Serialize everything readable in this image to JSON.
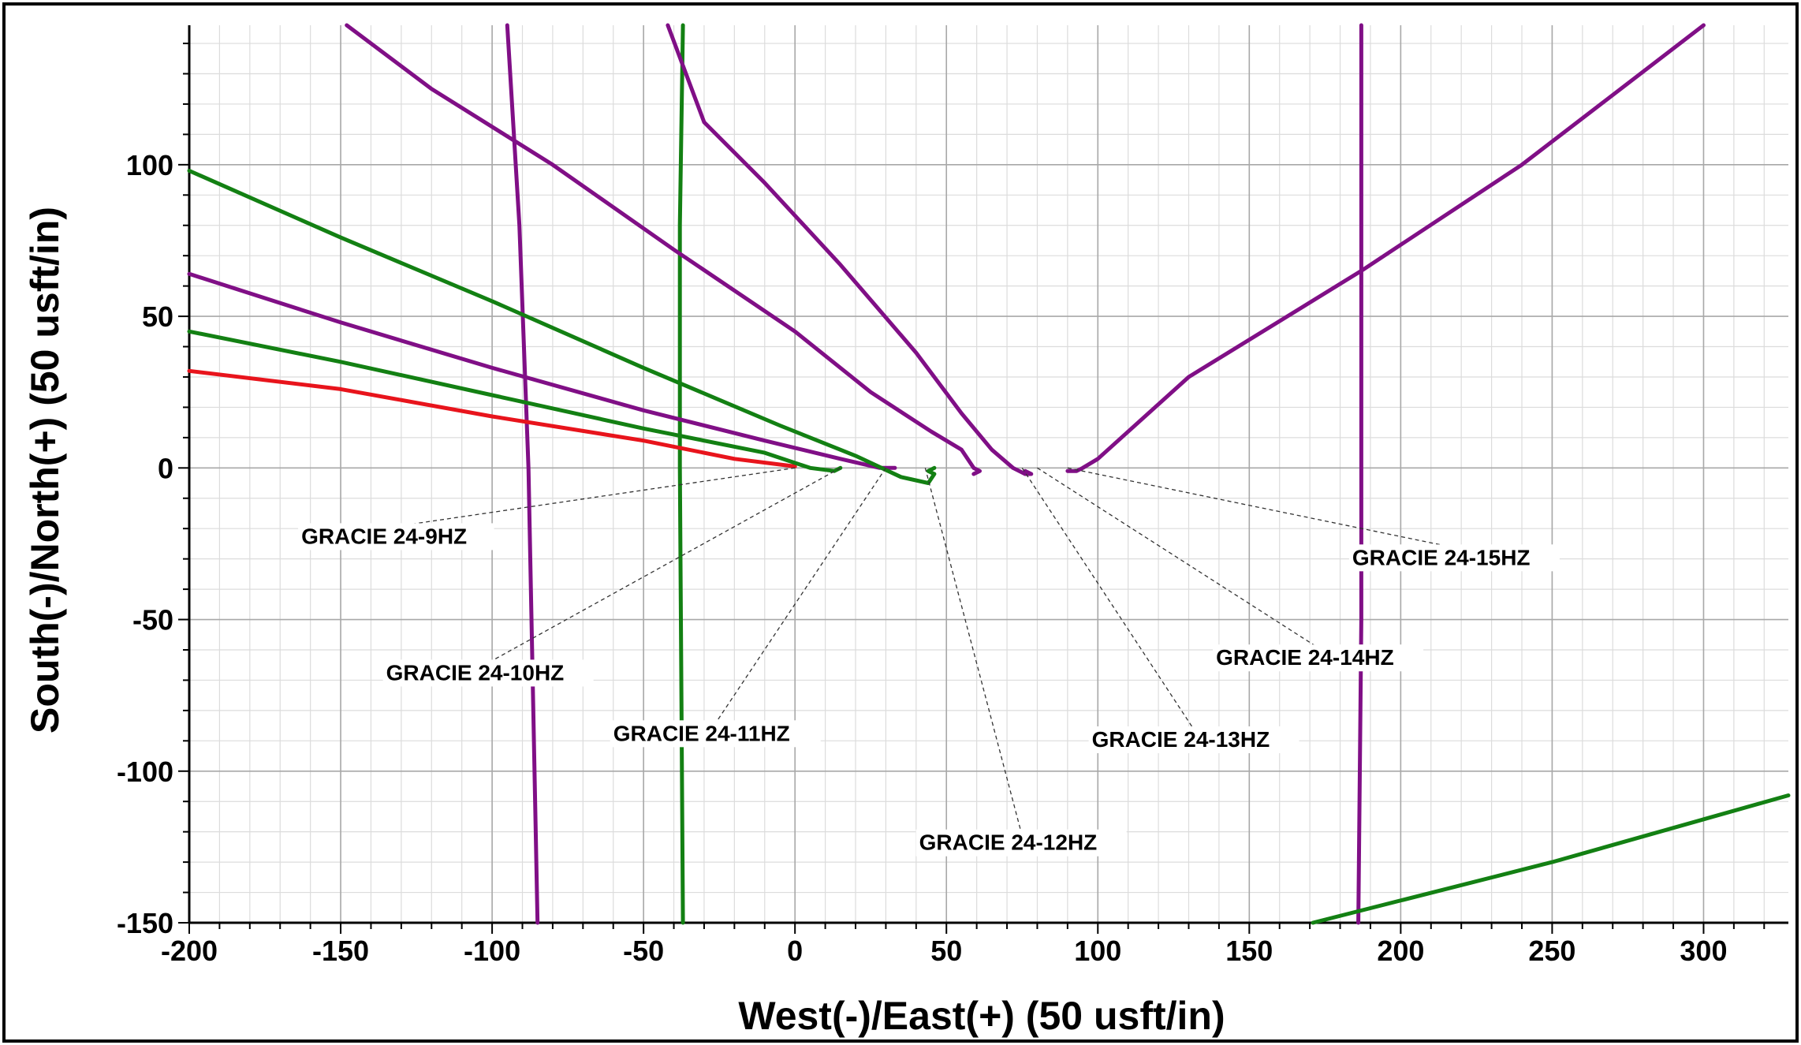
{
  "chart_data": {
    "type": "line",
    "title": "",
    "xlabel": "West(-)/East(+) (50 usft/in)",
    "ylabel": "South(-)/North(+) (50 usft/in)",
    "xlim": [
      -200,
      328
    ],
    "ylim": [
      -150,
      146
    ],
    "x_ticks": [
      -200,
      -150,
      -100,
      -50,
      0,
      50,
      100,
      150,
      200,
      250,
      300
    ],
    "y_ticks": [
      -150,
      -100,
      -50,
      0,
      50,
      100
    ],
    "x_tick_labels": [
      "-200",
      "-150",
      "-100",
      "-50",
      "0",
      "50",
      "100",
      "150",
      "200",
      "250",
      "300"
    ],
    "y_tick_labels": [
      "-150",
      "-100",
      "-50",
      "0",
      "50",
      "100"
    ],
    "grid": true,
    "colors": {
      "red": "#e8141c",
      "green": "#138013",
      "purple": "#800f86"
    },
    "series": [
      {
        "color": "purple",
        "points": [
          [
            -95,
            146
          ],
          [
            -91,
            80
          ],
          [
            -88,
            0
          ],
          [
            -85,
            -150
          ]
        ]
      },
      {
        "color": "green",
        "points": [
          [
            -37,
            146
          ],
          [
            -38,
            80
          ],
          [
            -38,
            0
          ],
          [
            -37,
            -150
          ]
        ]
      },
      {
        "color": "purple",
        "points": [
          [
            187,
            146
          ],
          [
            187,
            50
          ],
          [
            187,
            -50
          ],
          [
            186,
            -150
          ]
        ]
      },
      {
        "color": "green",
        "points": [
          [
            171,
            -150
          ],
          [
            250,
            -130
          ],
          [
            328,
            -108
          ]
        ]
      },
      {
        "color": "red",
        "points": [
          [
            -200,
            32
          ],
          [
            -150,
            26
          ],
          [
            -100,
            17
          ],
          [
            -50,
            9
          ],
          [
            -20,
            3
          ],
          [
            0,
            0.5
          ]
        ]
      },
      {
        "color": "green",
        "points": [
          [
            -200,
            45
          ],
          [
            -150,
            35
          ],
          [
            -100,
            24
          ],
          [
            -50,
            13
          ],
          [
            -10,
            5
          ],
          [
            5,
            0
          ],
          [
            13,
            -1
          ],
          [
            15,
            0
          ]
        ]
      },
      {
        "color": "purple",
        "points": [
          [
            -200,
            64
          ],
          [
            -150,
            48
          ],
          [
            -100,
            33
          ],
          [
            -50,
            19
          ],
          [
            -10,
            9
          ],
          [
            15,
            3
          ],
          [
            28,
            0
          ],
          [
            33,
            0
          ]
        ]
      },
      {
        "color": "green",
        "points": [
          [
            -200,
            98
          ],
          [
            -150,
            76
          ],
          [
            -100,
            55
          ],
          [
            -50,
            33
          ],
          [
            -5,
            14
          ],
          [
            20,
            4
          ],
          [
            35,
            -3
          ],
          [
            44,
            -5
          ],
          [
            46,
            -2
          ],
          [
            44,
            -1
          ],
          [
            46,
            0
          ]
        ]
      },
      {
        "color": "purple",
        "points": [
          [
            -148,
            146
          ],
          [
            -120,
            125
          ],
          [
            -80,
            100
          ],
          [
            -40,
            72
          ],
          [
            0,
            45
          ],
          [
            25,
            25
          ],
          [
            45,
            12
          ],
          [
            55,
            6
          ],
          [
            59,
            0
          ],
          [
            61,
            -1
          ],
          [
            59,
            -2
          ]
        ]
      },
      {
        "color": "purple",
        "points": [
          [
            -42,
            146
          ],
          [
            -30,
            114
          ],
          [
            -10,
            94
          ],
          [
            15,
            67
          ],
          [
            40,
            38
          ],
          [
            55,
            18
          ],
          [
            65,
            6
          ],
          [
            72,
            0
          ],
          [
            76,
            -2
          ],
          [
            78,
            -2
          ],
          [
            76,
            -1
          ]
        ]
      },
      {
        "color": "purple",
        "points": [
          [
            90,
            -1
          ],
          [
            93,
            -1
          ],
          [
            95,
            0
          ],
          [
            100,
            3
          ],
          [
            130,
            30
          ],
          [
            187,
            65
          ],
          [
            240,
            100
          ],
          [
            300,
            146
          ]
        ]
      }
    ],
    "annotations": [
      {
        "text": "GRACIE 24-9HZ",
        "target": [
          0,
          0
        ],
        "label_at": [
          -163,
          -25
        ]
      },
      {
        "text": "GRACIE 24-10HZ",
        "target": [
          15,
          0
        ],
        "label_at": [
          -135,
          -70
        ]
      },
      {
        "text": "GRACIE 24-11HZ",
        "target": [
          30,
          0
        ],
        "label_at": [
          -60,
          -90
        ]
      },
      {
        "text": "GRACIE 24-12HZ",
        "target": [
          43,
          0
        ],
        "label_at": [
          41,
          -126
        ]
      },
      {
        "text": "GRACIE 24-13HZ",
        "target": [
          75,
          0
        ],
        "label_at": [
          98,
          -92
        ]
      },
      {
        "text": "GRACIE 24-14HZ",
        "target": [
          80,
          0
        ],
        "label_at": [
          139,
          -65
        ]
      },
      {
        "text": "GRACIE 24-15HZ",
        "target": [
          90,
          0
        ],
        "label_at": [
          184,
          -32
        ]
      }
    ]
  }
}
